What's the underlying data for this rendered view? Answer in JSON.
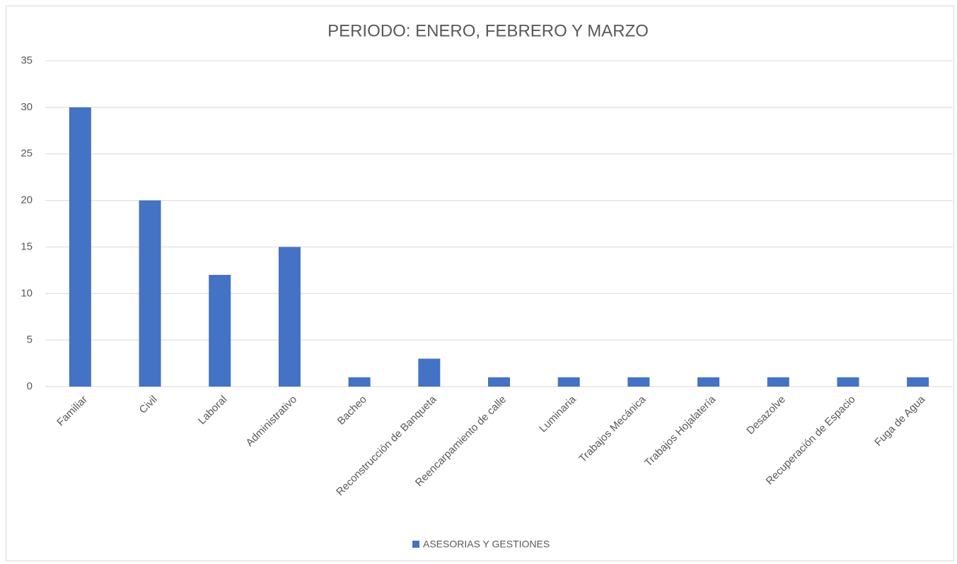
{
  "chart_data": {
    "type": "bar",
    "title": "PERIODO: ENERO, FEBRERO Y MARZO",
    "categories": [
      "Familiar",
      "Civil",
      "Laboral",
      "Administrativo",
      "Bacheo",
      "Reconstrucción de Banqueta",
      "Reencarpamiento de calle",
      "Luminaria",
      "Trabajos Mecánica",
      "Trabajos Hojalatería",
      "Desazolve",
      "Recuperación de Espacio",
      "Fuga de Agua"
    ],
    "series": [
      {
        "name": "ASESORIAS Y GESTIONES",
        "color": "#4472c4",
        "values": [
          30,
          20,
          12,
          15,
          1,
          3,
          1,
          1,
          1,
          1,
          1,
          1,
          1
        ]
      }
    ],
    "ylim": [
      0,
      35
    ],
    "yticks": [
      0,
      5,
      10,
      15,
      20,
      25,
      30,
      35
    ],
    "grid": true,
    "legend": "bottom"
  }
}
